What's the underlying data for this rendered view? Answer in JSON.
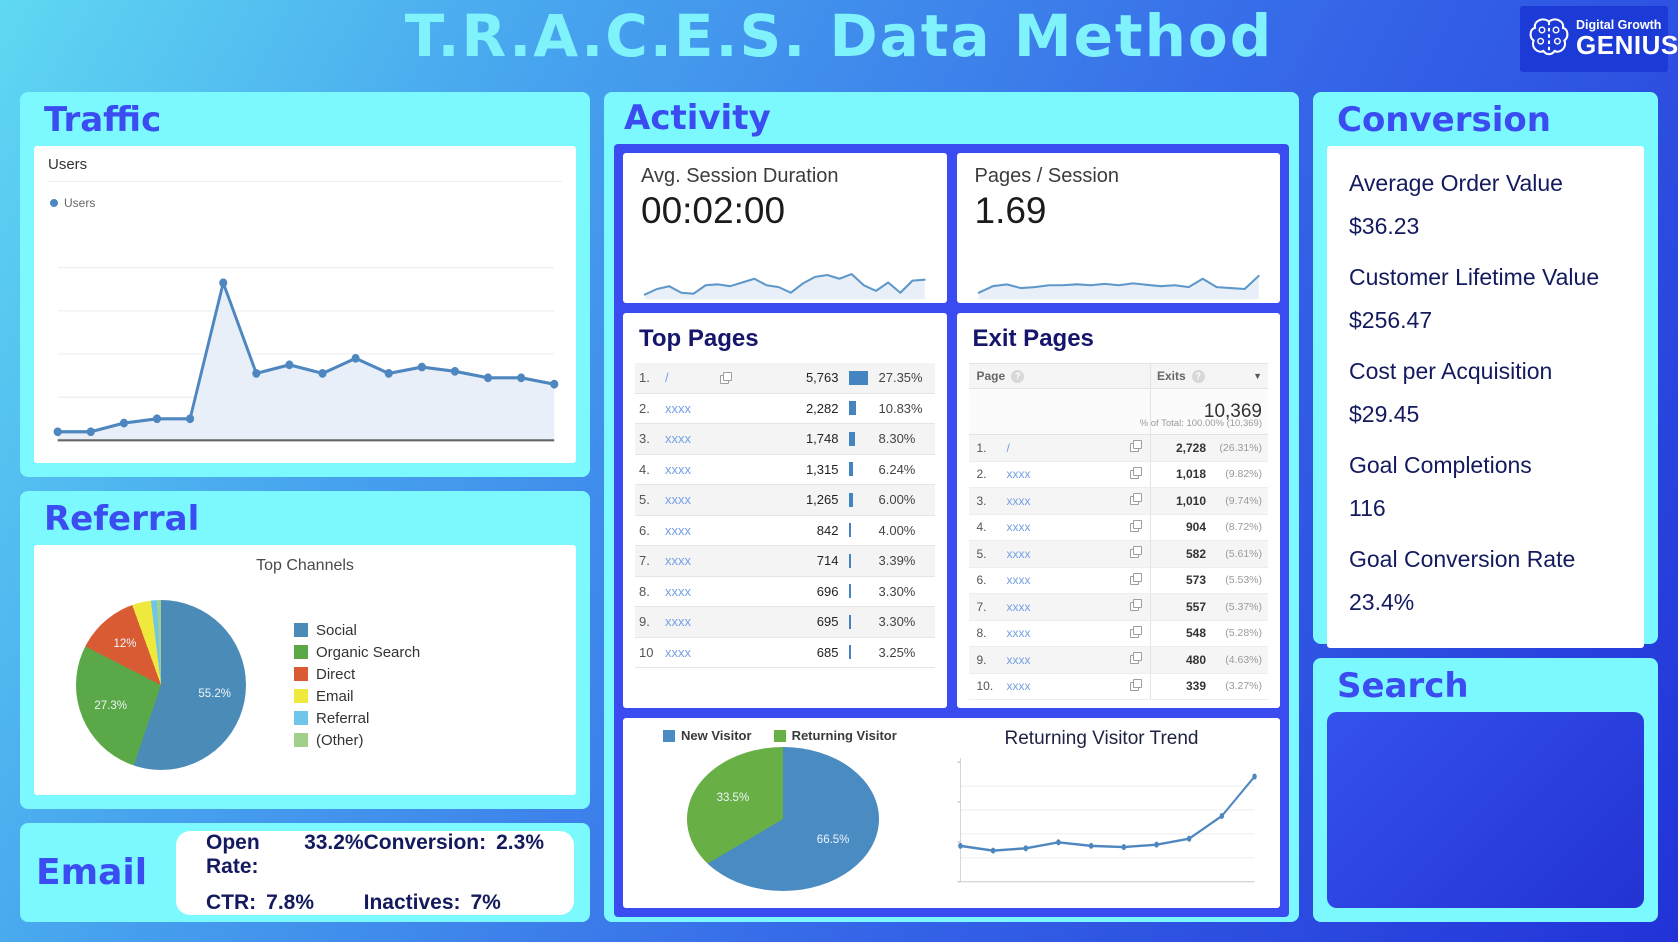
{
  "header": {
    "title": "T.R.A.C.E.S. Data Method",
    "logo_line1": "Digital Growth",
    "logo_line2": "GENIUS",
    "logo_icon": "brain-icon"
  },
  "colors": {
    "panel_cyan": "#7cf8ff",
    "heading_blue": "#3b4cf0",
    "title_cyan": "#80f2fc",
    "navy_text": "#141a5e",
    "ga_line_blue": "#4e87c0",
    "ga_area_fill": "#e9eff8",
    "bar_blue": "#4485c1",
    "link_blue": "#74a0e4",
    "logo_bg": "#1b3ad6"
  },
  "traffic": {
    "heading": "Traffic",
    "chart_title": "Users",
    "legend": "Users"
  },
  "referral": {
    "heading": "Referral",
    "chart_title": "Top Channels"
  },
  "email": {
    "heading": "Email",
    "stats": [
      {
        "label": "Open Rate:",
        "value": "33.2%"
      },
      {
        "label": "Conversion:",
        "value": "2.3%"
      },
      {
        "label": "CTR:",
        "value": "7.8%"
      },
      {
        "label": "Inactives:",
        "value": "7%"
      }
    ]
  },
  "activity": {
    "heading": "Activity",
    "session": {
      "label": "Avg. Session Duration",
      "value": "00:02:00"
    },
    "pages": {
      "label": "Pages / Session",
      "value": "1.69"
    },
    "top_pages": {
      "heading": "Top Pages",
      "rows": [
        {
          "rank": "1.",
          "page": "/",
          "value": "5,763",
          "pct": "27.35%",
          "icon": true
        },
        {
          "rank": "2.",
          "page": "xxxx",
          "value": "2,282",
          "pct": "10.83%",
          "icon": false
        },
        {
          "rank": "3.",
          "page": "xxxx",
          "value": "1,748",
          "pct": "8.30%",
          "icon": false
        },
        {
          "rank": "4.",
          "page": "xxxx",
          "value": "1,315",
          "pct": "6.24%",
          "icon": false
        },
        {
          "rank": "5.",
          "page": "xxxx",
          "value": "1,265",
          "pct": "6.00%",
          "icon": false
        },
        {
          "rank": "6.",
          "page": "xxxx",
          "value": "842",
          "pct": "4.00%",
          "icon": false
        },
        {
          "rank": "7.",
          "page": "xxxx",
          "value": "714",
          "pct": "3.39%",
          "icon": false
        },
        {
          "rank": "8.",
          "page": "xxxx",
          "value": "696",
          "pct": "3.30%",
          "icon": false
        },
        {
          "rank": "9.",
          "page": "xxxx",
          "value": "695",
          "pct": "3.30%",
          "icon": false
        },
        {
          "rank": "10",
          "page": "xxxx",
          "value": "685",
          "pct": "3.25%",
          "icon": false
        }
      ]
    },
    "exit_pages": {
      "heading": "Exit Pages",
      "col_page": "Page",
      "col_exits": "Exits",
      "total": "10,369",
      "total_note": "% of Total: 100.00% (10,369)",
      "rows": [
        {
          "rank": "1.",
          "page": "/",
          "value": "2,728",
          "pct": "(26.31%)"
        },
        {
          "rank": "2.",
          "page": "xxxx",
          "value": "1,018",
          "pct": "(9.82%)"
        },
        {
          "rank": "3.",
          "page": "xxxx",
          "value": "1,010",
          "pct": "(9.74%)"
        },
        {
          "rank": "4.",
          "page": "xxxx",
          "value": "904",
          "pct": "(8.72%)"
        },
        {
          "rank": "5.",
          "page": "xxxx",
          "value": "582",
          "pct": "(5.61%)"
        },
        {
          "rank": "6.",
          "page": "xxxx",
          "value": "573",
          "pct": "(5.53%)"
        },
        {
          "rank": "7.",
          "page": "xxxx",
          "value": "557",
          "pct": "(5.37%)"
        },
        {
          "rank": "8.",
          "page": "xxxx",
          "value": "548",
          "pct": "(5.28%)"
        },
        {
          "rank": "9.",
          "page": "xxxx",
          "value": "480",
          "pct": "(4.63%)"
        },
        {
          "rank": "10.",
          "page": "xxxx",
          "value": "339",
          "pct": "(3.27%)"
        }
      ]
    },
    "visitors": {
      "trend_title": "Returning Visitor Trend"
    }
  },
  "conversion": {
    "heading": "Conversion",
    "metrics": [
      {
        "label": "Average Order Value",
        "value": "$36.23"
      },
      {
        "label": "Customer Lifetime Value",
        "value": "$256.47"
      },
      {
        "label": "Cost per Acquisition",
        "value": "$29.45"
      },
      {
        "label": "Goal Completions",
        "value": "116"
      },
      {
        "label": "Goal Conversion Rate",
        "value": "23.4%"
      }
    ]
  },
  "search": {
    "heading": "Search"
  },
  "chart_data": [
    {
      "id": "users_trend",
      "type": "area",
      "title": "Users",
      "legend": [
        "Users"
      ],
      "values": [
        4,
        4,
        8,
        10,
        10,
        73,
        31,
        35,
        31,
        38,
        31,
        34,
        32,
        29,
        29,
        26
      ],
      "ylim": [
        0,
        100
      ],
      "grid": true,
      "note": "relative user counts per interval; spike mid-series then steady decline; no axis labels shown"
    },
    {
      "id": "avg_session_duration_spark",
      "type": "area",
      "title": "Avg. Session Duration",
      "headline": "00:02:00",
      "values": [
        10,
        22,
        28,
        14,
        12,
        30,
        32,
        28,
        36,
        44,
        30,
        26,
        14,
        34,
        48,
        52,
        44,
        54,
        30,
        18,
        36,
        14,
        40,
        42
      ],
      "ylim": [
        0,
        100
      ],
      "grid": false
    },
    {
      "id": "pages_per_session_spark",
      "type": "area",
      "title": "Pages / Session",
      "headline": "1.69",
      "values": [
        14,
        28,
        32,
        24,
        26,
        30,
        30,
        32,
        30,
        33,
        30,
        34,
        31,
        28,
        30,
        26,
        44,
        26,
        24,
        22,
        50
      ],
      "ylim": [
        0,
        100
      ],
      "grid": false
    },
    {
      "id": "top_channels_pie",
      "type": "pie",
      "title": "Top Channels",
      "slices": [
        {
          "label": "Social",
          "pct": 55.2,
          "color": "#4a8bb8",
          "on_slice_label": "55.2%"
        },
        {
          "label": "Organic Search",
          "pct": 27.3,
          "color": "#5aa847",
          "on_slice_label": "27.3%"
        },
        {
          "label": "Direct",
          "pct": 12,
          "color": "#d95b33",
          "on_slice_label": "12%"
        },
        {
          "label": "Email",
          "pct": 3.6,
          "color": "#efe93e"
        },
        {
          "label": "Referral",
          "pct": 1.1,
          "color": "#6ec6ea"
        },
        {
          "label": "(Other)",
          "pct": 0.8,
          "color": "#a2cf8b"
        }
      ],
      "legend_position": "right"
    },
    {
      "id": "visitor_type_pie",
      "type": "pie",
      "slices": [
        {
          "label": "New Visitor",
          "pct": 66.5,
          "color": "#4a8bc2",
          "on_slice_label": "66.5%"
        },
        {
          "label": "Returning Visitor",
          "pct": 33.5,
          "color": "#68af46",
          "on_slice_label": "33.5%"
        }
      ],
      "legend_position": "top"
    },
    {
      "id": "returning_visitor_trend",
      "type": "line",
      "title": "Returning Visitor Trend",
      "values": [
        30,
        26,
        28,
        33,
        30,
        29,
        31,
        36,
        55,
        88
      ],
      "ylim": [
        0,
        100
      ],
      "grid": true,
      "note": "flat early values rising sharply at the end; y tick labels too small to read"
    }
  ]
}
